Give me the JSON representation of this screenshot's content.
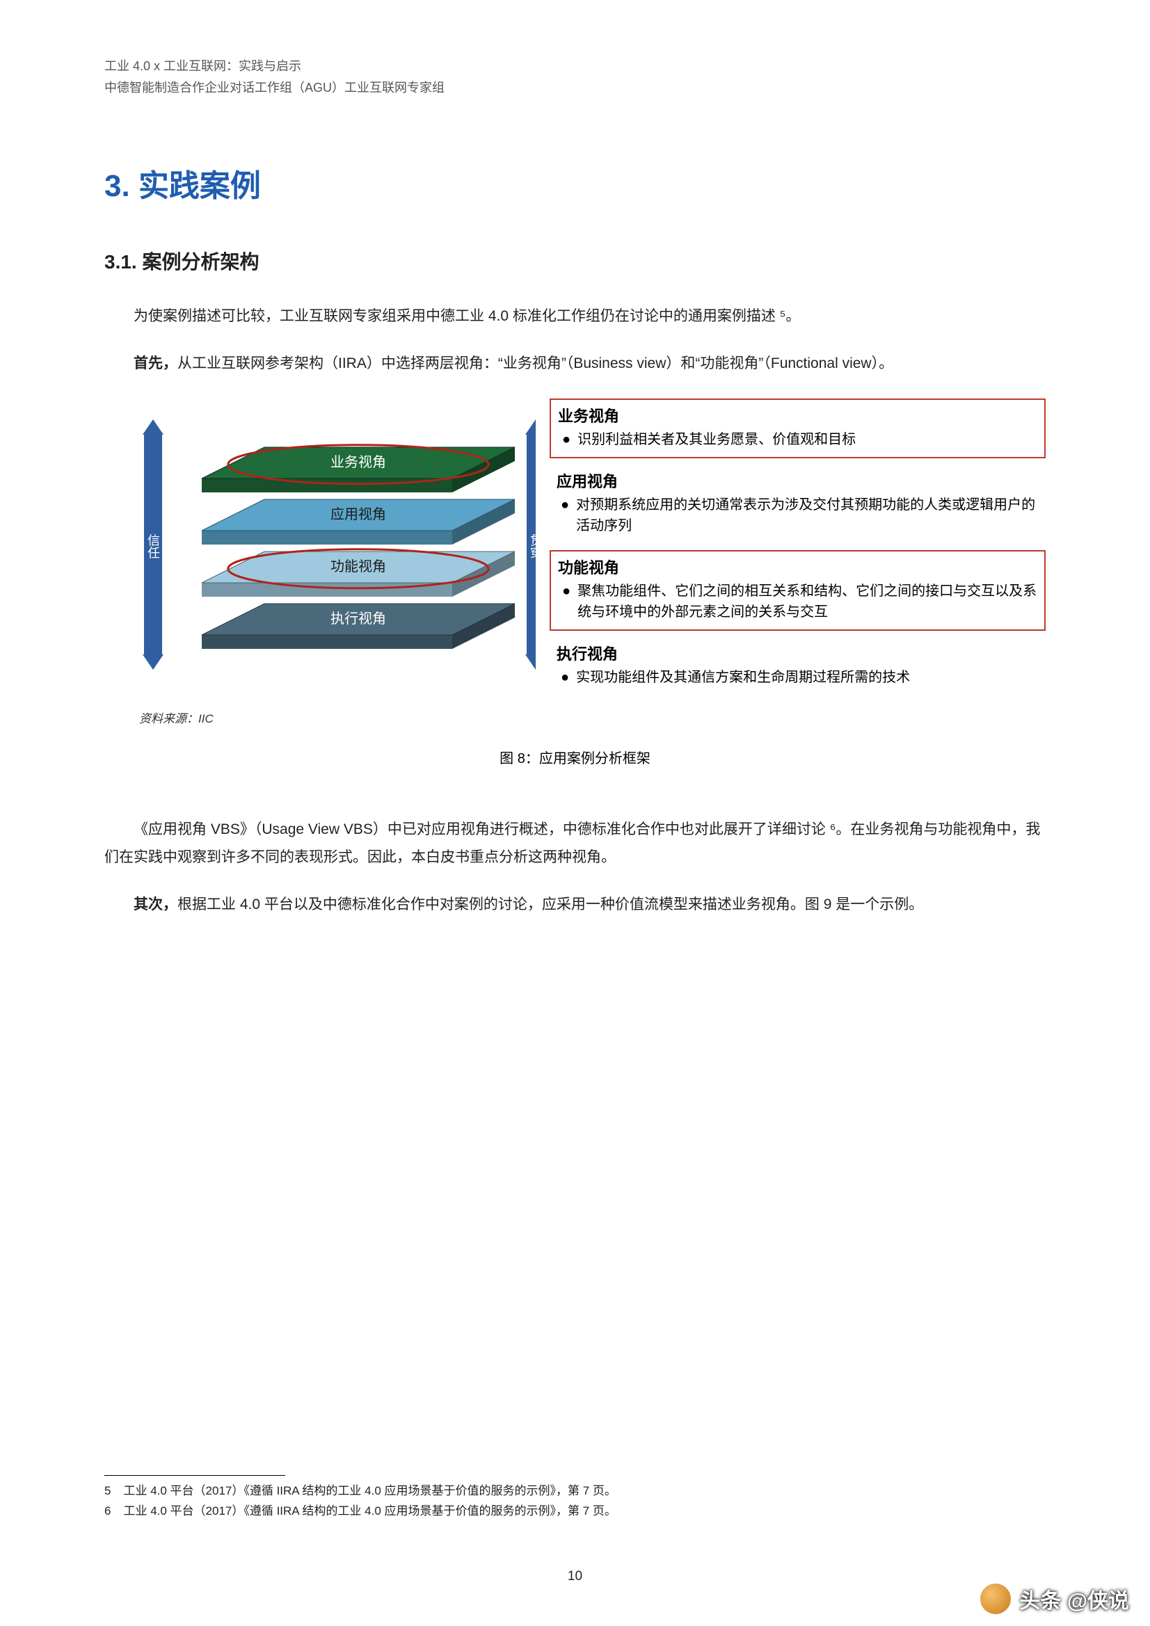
{
  "header": {
    "line1": "工业 4.0 x 工业互联网：实践与启示",
    "line2": "中德智能制造合作企业对话工作组（AGU）工业互联网专家组"
  },
  "section": {
    "number": "3.",
    "title": "实践案例"
  },
  "subsection": {
    "number": "3.1.",
    "title": "案例分析架构"
  },
  "para1": "为使案例描述可比较，工业互联网专家组采用中德工业 4.0 标准化工作组仍在讨论中的通用案例描述 ⁵。",
  "para2_bold": "首先，",
  "para2_rest": "从工业互联网参考架构（IIRA）中选择两层视角：“业务视角”（Business view）和“功能视角”（Functional view）。",
  "diagram": {
    "left_axis_label": "信任",
    "right_axis_label": "贯穿",
    "layers": [
      {
        "label": "业务视角",
        "fill": "#1f6b3a",
        "text": "#ffffff"
      },
      {
        "label": "应用视角",
        "fill": "#5aa4c9",
        "text": "#1a1a1a"
      },
      {
        "label": "功能视角",
        "fill": "#9fc9df",
        "text": "#1a1a1a"
      },
      {
        "label": "执行视角",
        "fill": "#4a6a7c",
        "text": "#ffffff"
      }
    ],
    "highlight_indices": [
      0,
      2
    ],
    "highlight_stroke": "#b02418",
    "views": [
      {
        "title": "业务视角",
        "bullet": "识别利益相关者及其业务愿景、价值观和目标",
        "red": true
      },
      {
        "title": "应用视角",
        "bullet": "对预期系统应用的关切通常表示为涉及交付其预期功能的人类或逻辑用户的活动序列",
        "red": false
      },
      {
        "title": "功能视角",
        "bullet": "聚焦功能组件、它们之间的相互关系和结构、它们之间的接口与交互以及系统与环境中的外部元素之间的关系与交互",
        "red": true
      },
      {
        "title": "执行视角",
        "bullet": "实现功能组件及其通信方案和生命周期过程所需的技术",
        "red": false
      }
    ]
  },
  "source": "资料来源：IIC",
  "figure_caption": "图 8：应用案例分析框架",
  "para3": "《应用视角 VBS》（Usage View VBS）中已对应用视角进行概述，中德标准化合作中也对此展开了详细讨论 ⁶。在业务视角与功能视角中，我们在实践中观察到许多不同的表现形式。因此，本白皮书重点分析这两种视角。",
  "para4_bold": "其次，",
  "para4_rest": "根据工业 4.0 平台以及中德标准化合作中对案例的讨论，应采用一种价值流模型来描述业务视角。图 9 是一个示例。",
  "footnotes": [
    {
      "n": "5",
      "text": "工业 4.0 平台（2017）《遵循 IIRA 结构的工业 4.0 应用场景基于价值的服务的示例》，第 7 页。"
    },
    {
      "n": "6",
      "text": "工业 4.0 平台（2017）《遵循 IIRA 结构的工业 4.0 应用场景基于价值的服务的示例》，第 7 页。"
    }
  ],
  "page_number": "10",
  "watermark": "头条 @侠说",
  "colors": {
    "accent_blue": "#1f5db0",
    "red_frame": "#c0392b",
    "arrow": "#2f5fa0"
  }
}
